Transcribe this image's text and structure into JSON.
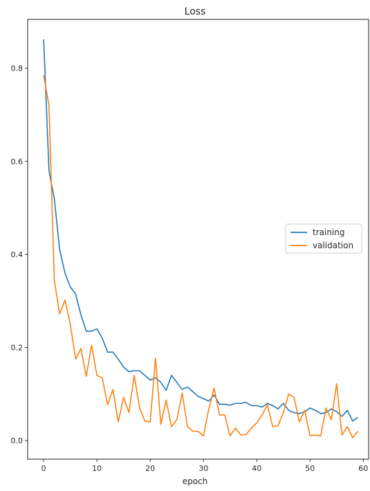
{
  "chart_data": {
    "type": "line",
    "title": "Loss",
    "xlabel": "epoch",
    "ylabel": "",
    "xlim": [
      -3,
      61
    ],
    "ylim": [
      -0.04,
      0.905
    ],
    "xticks": [
      0,
      10,
      20,
      30,
      40,
      50,
      60
    ],
    "yticks": [
      0.0,
      0.2,
      0.4,
      0.6,
      0.8
    ],
    "xtick_labels": [
      "0",
      "10",
      "20",
      "30",
      "40",
      "50",
      "60"
    ],
    "ytick_labels": [
      "0.0",
      "0.2",
      "0.4",
      "0.6",
      "0.8"
    ],
    "grid": false,
    "legend_position": "center-right",
    "series": [
      {
        "name": "training",
        "color": "#1f77b4",
        "x": [
          0,
          1,
          2,
          3,
          4,
          5,
          6,
          7,
          8,
          9,
          10,
          11,
          12,
          13,
          14,
          15,
          16,
          17,
          18,
          19,
          20,
          21,
          22,
          23,
          24,
          25,
          26,
          27,
          28,
          29,
          30,
          31,
          32,
          33,
          34,
          35,
          36,
          37,
          38,
          39,
          40,
          41,
          42,
          43,
          44,
          45,
          46,
          47,
          48,
          49,
          50,
          51,
          52,
          53,
          54,
          55,
          56,
          57,
          58,
          59
        ],
        "values": [
          0.862,
          0.58,
          0.52,
          0.41,
          0.36,
          0.33,
          0.315,
          0.27,
          0.235,
          0.235,
          0.24,
          0.22,
          0.19,
          0.19,
          0.175,
          0.158,
          0.148,
          0.15,
          0.15,
          0.14,
          0.13,
          0.135,
          0.125,
          0.108,
          0.14,
          0.125,
          0.11,
          0.115,
          0.105,
          0.095,
          0.09,
          0.085,
          0.098,
          0.078,
          0.078,
          0.076,
          0.08,
          0.08,
          0.082,
          0.075,
          0.075,
          0.072,
          0.08,
          0.075,
          0.068,
          0.08,
          0.065,
          0.06,
          0.058,
          0.062,
          0.07,
          0.065,
          0.058,
          0.06,
          0.068,
          0.062,
          0.052,
          0.065,
          0.042,
          0.05
        ]
      },
      {
        "name": "validation",
        "color": "#ff7f0e",
        "x": [
          0,
          1,
          2,
          3,
          4,
          5,
          6,
          7,
          8,
          9,
          10,
          11,
          12,
          13,
          14,
          15,
          16,
          17,
          18,
          19,
          20,
          21,
          22,
          23,
          24,
          25,
          26,
          27,
          28,
          29,
          30,
          31,
          32,
          33,
          34,
          35,
          36,
          37,
          38,
          39,
          40,
          41,
          42,
          43,
          44,
          45,
          46,
          47,
          48,
          49,
          50,
          51,
          52,
          53,
          54,
          55,
          56,
          57,
          58,
          59
        ],
        "values": [
          0.785,
          0.72,
          0.345,
          0.272,
          0.302,
          0.25,
          0.175,
          0.198,
          0.138,
          0.205,
          0.14,
          0.135,
          0.077,
          0.11,
          0.04,
          0.093,
          0.06,
          0.14,
          0.07,
          0.042,
          0.04,
          0.177,
          0.035,
          0.087,
          0.03,
          0.045,
          0.102,
          0.03,
          0.02,
          0.02,
          0.01,
          0.068,
          0.113,
          0.055,
          0.055,
          0.01,
          0.027,
          0.012,
          0.013,
          0.027,
          0.038,
          0.055,
          0.077,
          0.03,
          0.032,
          0.06,
          0.1,
          0.093,
          0.04,
          0.065,
          0.01,
          0.012,
          0.01,
          0.07,
          0.045,
          0.122,
          0.012,
          0.03,
          0.006,
          0.02
        ]
      }
    ]
  }
}
